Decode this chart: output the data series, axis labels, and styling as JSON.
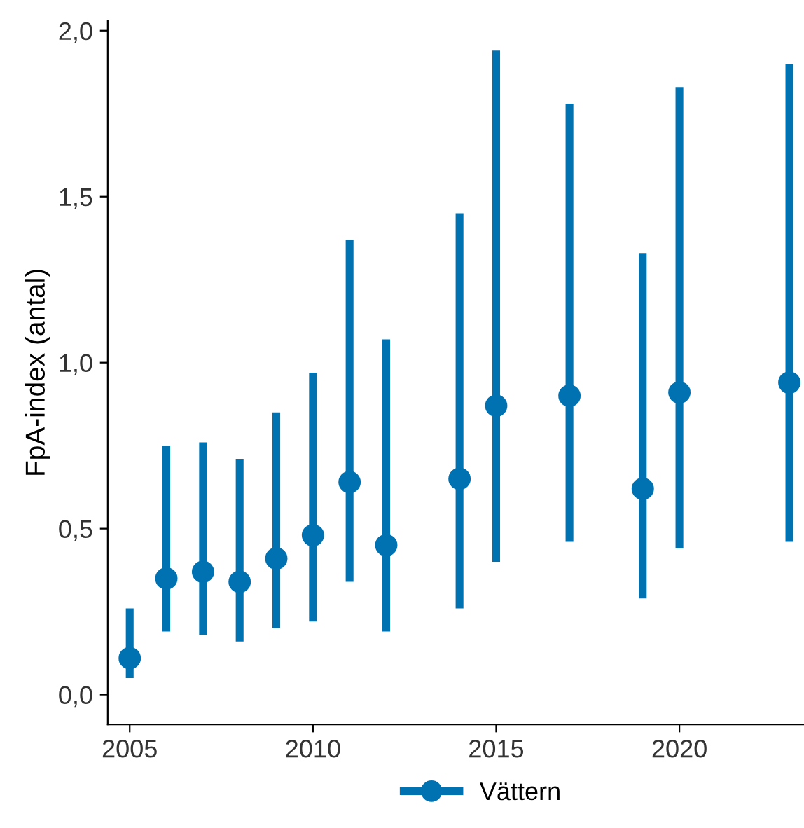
{
  "chart_data": {
    "type": "scatter",
    "ylabel": "FpA-index (antal)",
    "x": [
      2005,
      2006,
      2007,
      2008,
      2009,
      2010,
      2011,
      2012,
      2014,
      2015,
      2017,
      2019,
      2020,
      2023
    ],
    "series": [
      {
        "name": "Vättern",
        "color": "#0072b2",
        "values": [
          0.11,
          0.35,
          0.37,
          0.34,
          0.41,
          0.48,
          0.64,
          0.45,
          0.65,
          0.87,
          0.9,
          0.62,
          0.91,
          0.94
        ],
        "errors": [
          [
            0.05,
            0.26
          ],
          [
            0.19,
            0.75
          ],
          [
            0.18,
            0.76
          ],
          [
            0.16,
            0.71
          ],
          [
            0.2,
            0.85
          ],
          [
            0.22,
            0.97
          ],
          [
            0.34,
            1.37
          ],
          [
            0.19,
            1.07
          ],
          [
            0.26,
            1.45
          ],
          [
            0.4,
            1.94
          ],
          [
            0.46,
            1.78
          ],
          [
            0.29,
            1.33
          ],
          [
            0.44,
            1.83
          ],
          [
            0.46,
            1.9
          ]
        ]
      }
    ],
    "xlim": [
      2004.4,
      2023.4
    ],
    "xticks": [
      2005,
      2010,
      2015,
      2020
    ],
    "ylim": [
      -0.09,
      2.03
    ],
    "yticks": [
      {
        "value": 0,
        "label": "0,0"
      },
      {
        "value": 0.5,
        "label": "0,5"
      },
      {
        "value": 1,
        "label": "1,0"
      },
      {
        "value": 1.5,
        "label": "1,5"
      },
      {
        "value": 2,
        "label": "2,0"
      }
    ],
    "marker": "circle",
    "grid": false,
    "legend": "bottom"
  }
}
